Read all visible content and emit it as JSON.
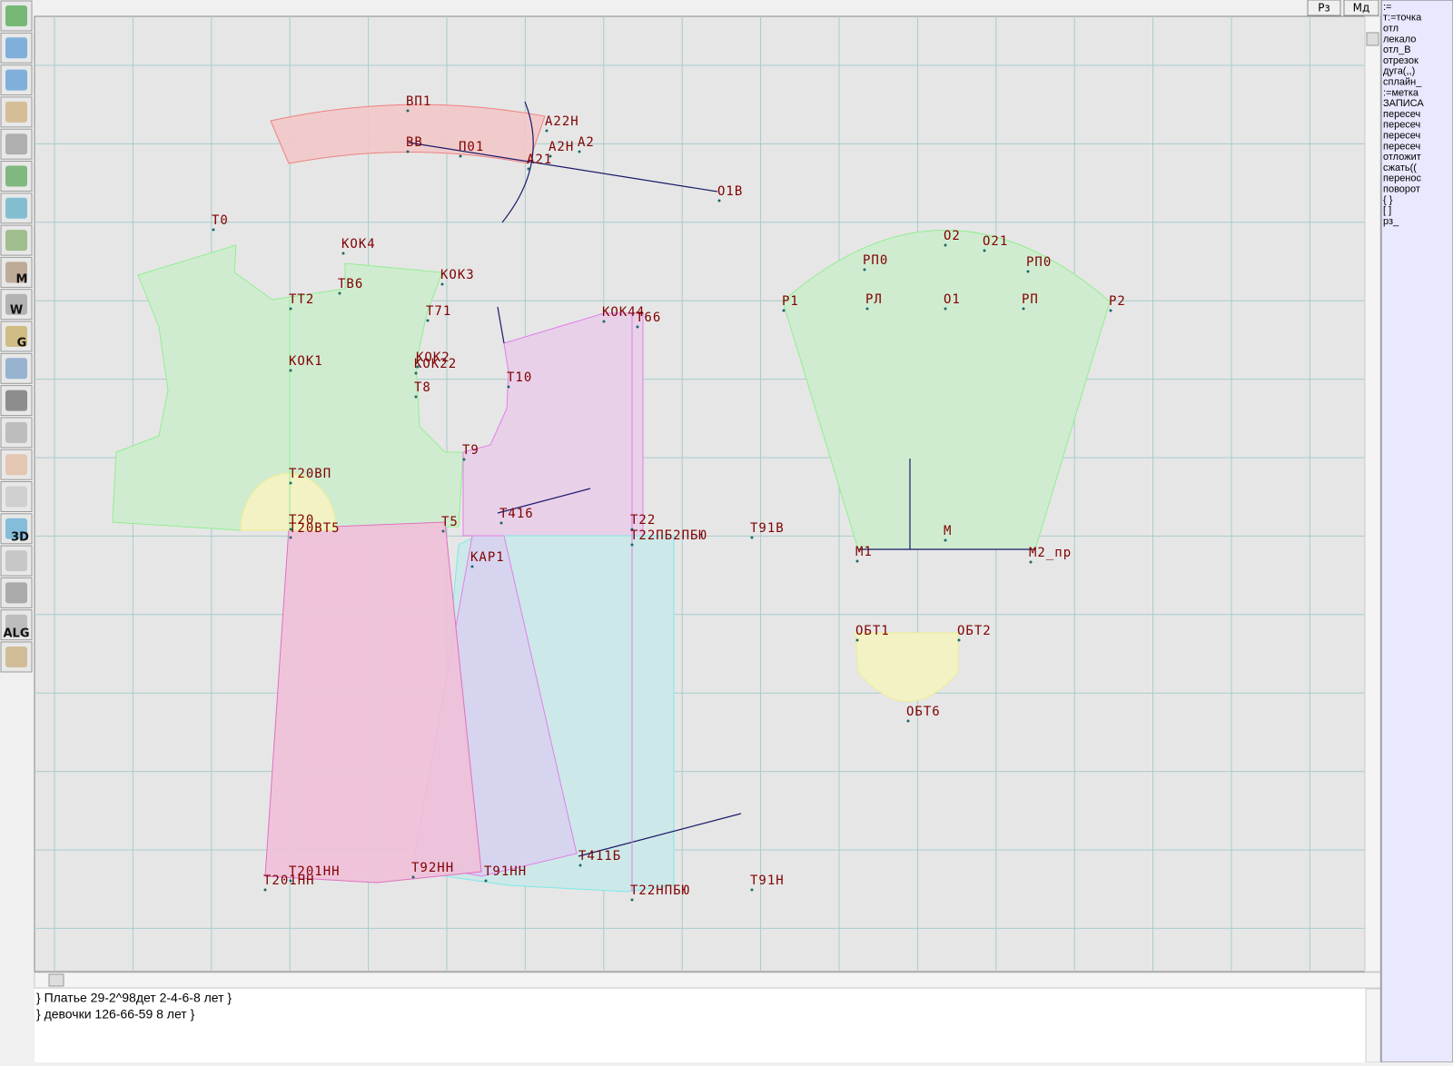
{
  "top_buttons": [
    "Рз",
    "Мд"
  ],
  "toolbar_labels": [
    "M",
    "W",
    "G",
    "3D",
    "ALG"
  ],
  "command_list": [
    ":=",
    "т:=точка",
    "отл",
    "лекало",
    "отл_В",
    "отрезок",
    "дуга(,,)",
    "сплайн_",
    ":=метка",
    "ЗАПИСА",
    "пересеч",
    "пересеч",
    "пересеч",
    "пересеч",
    "отложит",
    "сжать((",
    "перенос",
    "поворот",
    "{ }",
    "[ ]",
    "рз_"
  ],
  "point_labels": [
    "ВП1",
    "ВВ",
    "П01",
    "А22Н",
    "А2Н",
    "А2",
    "А21",
    "О1В",
    "Т0",
    "КОК4",
    "ТТ2",
    "ТВ6",
    "КОК3",
    "Т71",
    "КОК44",
    "Т66",
    "КОК1",
    "КОК2",
    "КОК22",
    "Т8",
    "Т10",
    "Т9",
    "Т20ВП",
    "Т20",
    "Т20ВТ5",
    "Т416",
    "Т5",
    "Т22",
    "Т22ПБ2ПБЮ",
    "Т91В",
    "КАР1",
    "Т201НН",
    "Т201НН",
    "Т92НН",
    "Т91НН",
    "Т411Б",
    "Т22НПБЮ",
    "Т91Н",
    "О2",
    "О21",
    "РП0",
    "РП0",
    "Р1",
    "РЛ",
    "О1",
    "РП",
    "Р2",
    "М",
    "М1",
    "М2_пр",
    "ОБТ1",
    "ОБТ2",
    "ОБТ6"
  ],
  "console_lines": [
    "} Платье 29-2^98дет 2-4-6-8 лет }",
    "} девочки 126-66-59  8 лет }"
  ]
}
